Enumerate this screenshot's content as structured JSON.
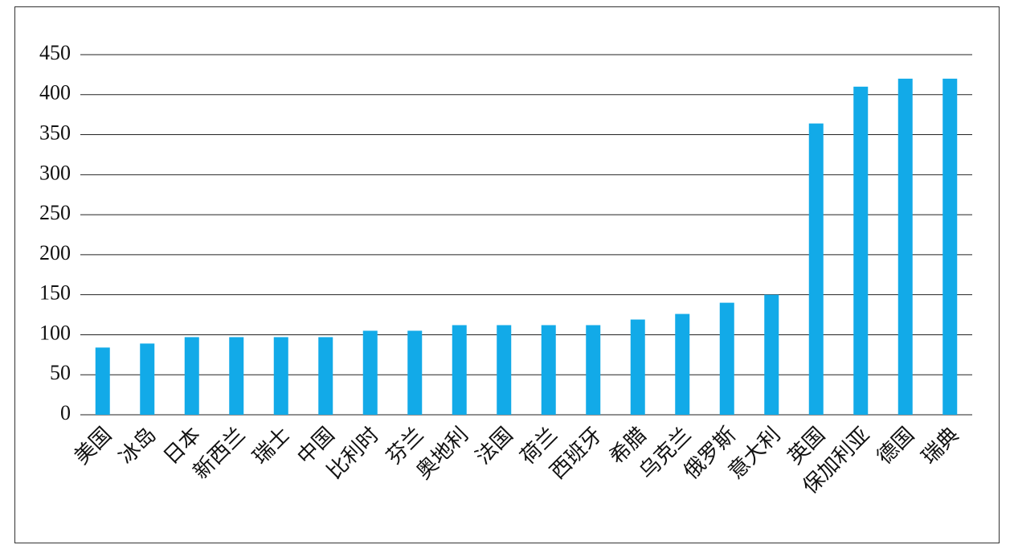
{
  "chart_data": {
    "type": "bar",
    "categories": [
      "美国",
      "冰岛",
      "日本",
      "新西兰",
      "瑞士",
      "中国",
      "比利时",
      "芬兰",
      "奥地利",
      "法国",
      "荷兰",
      "西班牙",
      "希腊",
      "乌克兰",
      "俄罗斯",
      "意大利",
      "英国",
      "保加利亚",
      "德国",
      "瑞典"
    ],
    "values": [
      84,
      89,
      97,
      97,
      97,
      97,
      105,
      105,
      112,
      112,
      112,
      112,
      119,
      126,
      140,
      150,
      364,
      410,
      420,
      420
    ],
    "color": "#12aae8",
    "ylim": [
      0,
      450
    ],
    "yticks": [
      0,
      50,
      100,
      150,
      200,
      250,
      300,
      350,
      400,
      450
    ],
    "grid": true
  }
}
